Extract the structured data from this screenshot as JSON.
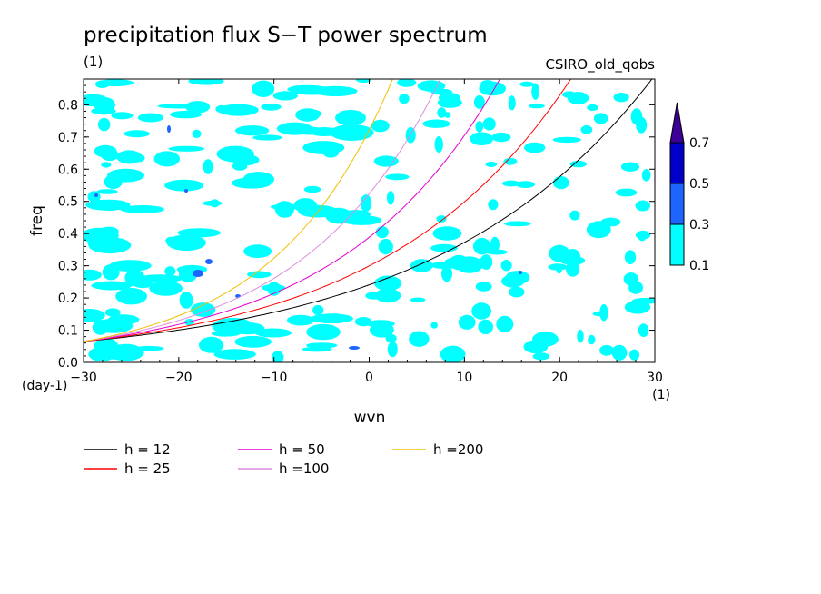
{
  "chart_data": {
    "type": "contour",
    "title": "precipitation flux S−T power spectrum",
    "subtitle_left": "(1)",
    "subtitle_right": "CSIRO_old_qobs",
    "xlabel": "wvn",
    "ylabel": "freq",
    "x_unit": "(1)",
    "y_unit": "(day-1)",
    "xlim": [
      -30,
      30
    ],
    "ylim": [
      0,
      0.88
    ],
    "xticks": [
      -30,
      -20,
      -10,
      0,
      10,
      20,
      30
    ],
    "yticks": [
      0.0,
      0.1,
      0.2,
      0.3,
      0.4,
      0.5,
      0.6,
      0.7,
      0.8
    ],
    "ytick_labels": [
      "0.0",
      "0.1",
      "0.2",
      "0.3",
      "0.4",
      "0.5",
      "0.6",
      "0.7",
      "0.8"
    ],
    "colorbar": {
      "levels": [
        "0.1",
        "0.3",
        "0.5",
        "0.7"
      ],
      "colors": [
        "#00ffff",
        "#1e64ff",
        "#0000c8",
        "#3c0096"
      ]
    },
    "series": [
      {
        "name": "h = 12",
        "color": "#000000",
        "h": 12
      },
      {
        "name": "h = 25",
        "color": "#ff0000",
        "h": 25
      },
      {
        "name": "h = 50",
        "color": "#e600d2",
        "h": 50
      },
      {
        "name": "h =100",
        "color": "#dc8cdc",
        "h": 100
      },
      {
        "name": "h =200",
        "color": "#f0c000",
        "h": 200
      }
    ]
  }
}
